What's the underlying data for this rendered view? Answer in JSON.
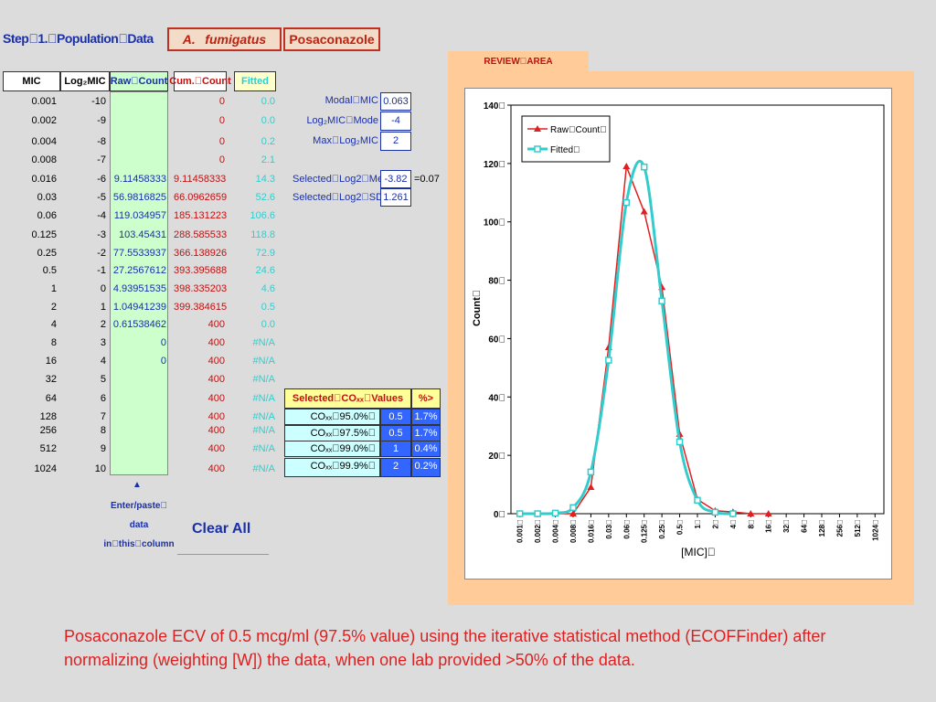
{
  "header": {
    "title": "Step\u00001.\u0000Population\u0000Data",
    "organism": "A.\u0000fumigatus",
    "drug": "Posaconazole"
  },
  "table": {
    "headers": [
      "MIC",
      "Log₂MIC",
      "Raw\u0000Count",
      "Cum.\u0000Count",
      "Fitted"
    ],
    "rows": [
      {
        "mic": "0.001",
        "log": "-10",
        "raw": "",
        "cum": "0",
        "fit": "0.0"
      },
      {
        "mic": "0.002",
        "log": "-9",
        "raw": "",
        "cum": "0",
        "fit": "0.0"
      },
      {
        "mic": "0.004",
        "log": "-8",
        "raw": "",
        "cum": "0",
        "fit": "0.2"
      },
      {
        "mic": "0.008",
        "log": "-7",
        "raw": "",
        "cum": "0",
        "fit": "2.1"
      },
      {
        "mic": "0.016",
        "log": "-6",
        "raw": "9.11458333",
        "cum": "9.11458333",
        "fit": "14.3"
      },
      {
        "mic": "0.03",
        "log": "-5",
        "raw": "56.9816825",
        "cum": "66.0962659",
        "fit": "52.6"
      },
      {
        "mic": "0.06",
        "log": "-4",
        "raw": "119.034957",
        "cum": "185.131223",
        "fit": "106.6"
      },
      {
        "mic": "0.125",
        "log": "-3",
        "raw": "103.45431",
        "cum": "288.585533",
        "fit": "118.8"
      },
      {
        "mic": "0.25",
        "log": "-2",
        "raw": "77.5533937",
        "cum": "366.138926",
        "fit": "72.9"
      },
      {
        "mic": "0.5",
        "log": "-1",
        "raw": "27.2567612",
        "cum": "393.395688",
        "fit": "24.6"
      },
      {
        "mic": "1",
        "log": "0",
        "raw": "4.93951535",
        "cum": "398.335203",
        "fit": "4.6"
      },
      {
        "mic": "2",
        "log": "1",
        "raw": "1.04941239",
        "cum": "399.384615",
        "fit": "0.5"
      },
      {
        "mic": "4",
        "log": "2",
        "raw": "0.61538462",
        "cum": "400",
        "fit": "0.0"
      },
      {
        "mic": "8",
        "log": "3",
        "raw": "0",
        "cum": "400",
        "fit": "#N/A"
      },
      {
        "mic": "16",
        "log": "4",
        "raw": "0",
        "cum": "400",
        "fit": "#N/A"
      },
      {
        "mic": "32",
        "log": "5",
        "raw": "",
        "cum": "400",
        "fit": "#N/A"
      },
      {
        "mic": "64",
        "log": "6",
        "raw": "",
        "cum": "400",
        "fit": "#N/A"
      },
      {
        "mic": "128",
        "log": "7",
        "raw": "",
        "cum": "400",
        "fit": "#N/A"
      },
      {
        "mic": "256",
        "log": "8",
        "raw": "",
        "cum": "400",
        "fit": "#N/A"
      },
      {
        "mic": "512",
        "log": "9",
        "raw": "",
        "cum": "400",
        "fit": "#N/A"
      },
      {
        "mic": "1024",
        "log": "10",
        "raw": "",
        "cum": "400",
        "fit": "#N/A"
      }
    ]
  },
  "summary": {
    "modal_label": "Modal\u0000MIC",
    "modal_value": "0.063",
    "logmode_label": "Log₂MIC\u0000Mode",
    "logmode_value": "-4",
    "maxlog_label": "Max\u0000Log₂MIC",
    "maxlog_value": "2",
    "mean_label": "Selected\u0000Log2\u0000Mean",
    "mean_value": "-3.82",
    "mean_extra": "=0.07",
    "sd_label": "Selected\u0000Log2\u0000SD",
    "sd_value": "1.261"
  },
  "cowt": {
    "header_label": "Selected\u0000COₓₓ\u0000Values",
    "header_pct": "%>",
    "rows": [
      {
        "label": "COₓₓ\u000095.0%\u0000",
        "value": "0.5",
        "pct": "1.7%"
      },
      {
        "label": "COₓₓ\u000097.5%\u0000",
        "value": "0.5",
        "pct": "1.7%"
      },
      {
        "label": "COₓₓ\u000099.0%\u0000",
        "value": "1",
        "pct": "0.4%"
      },
      {
        "label": "COₓₓ\u000099.9%\u0000",
        "value": "2",
        "pct": "0.2%"
      }
    ]
  },
  "controls": {
    "arrow": "▲",
    "enter_line1": "Enter/paste\u0000",
    "enter_line2": "data",
    "enter_line3": "in\u0000this\u0000column",
    "clear_all": "Clear All"
  },
  "review": {
    "tab_label": "REVIEW\u0000AREA"
  },
  "chart_data": {
    "type": "line",
    "ylabel": "Count\u0000",
    "xlabel": "[MIC]\u0000",
    "ylim": [
      0,
      140
    ],
    "y_ticks": [
      "0\u0000",
      "20\u0000",
      "40\u0000",
      "60\u0000",
      "80\u0000",
      "100\u0000",
      "120\u0000",
      "140\u0000"
    ],
    "categories": [
      "0.001\u0000",
      "0.002\u0000",
      "0.004\u0000",
      "0.008\u0000",
      "0.016\u0000",
      "0.03\u0000",
      "0.06\u0000",
      "0.125\u0000",
      "0.25\u0000",
      "0.5\u0000",
      "1\u0000",
      "2\u0000",
      "4\u0000",
      "8\u0000",
      "16\u0000",
      "32\u0000",
      "64\u0000",
      "128\u0000",
      "256\u0000",
      "512\u0000",
      "1024\u0000"
    ],
    "series": [
      {
        "name": "Raw\u0000Count\u0000",
        "color": "#e02020",
        "values": [
          0,
          0,
          0,
          0,
          9.1,
          57.0,
          119.0,
          103.5,
          77.6,
          27.3,
          4.9,
          1.0,
          0.6,
          0,
          0,
          null,
          null,
          null,
          null,
          null,
          null
        ]
      },
      {
        "name": "Fitted\u0000",
        "color": "#33cccc",
        "values": [
          0.0,
          0.0,
          0.2,
          2.1,
          14.3,
          52.6,
          106.6,
          118.8,
          72.9,
          24.6,
          4.6,
          0.5,
          0.0,
          null,
          null,
          null,
          null,
          null,
          null,
          null,
          null
        ]
      }
    ],
    "legend": "top-left"
  },
  "caption": "Posaconazole ECV of 0.5 mcg/ml (97.5% value) using the iterative statistical method (ECOFFinder) after normalizing  (weighting [W]) the  data, when one lab provided >50% of the data."
}
